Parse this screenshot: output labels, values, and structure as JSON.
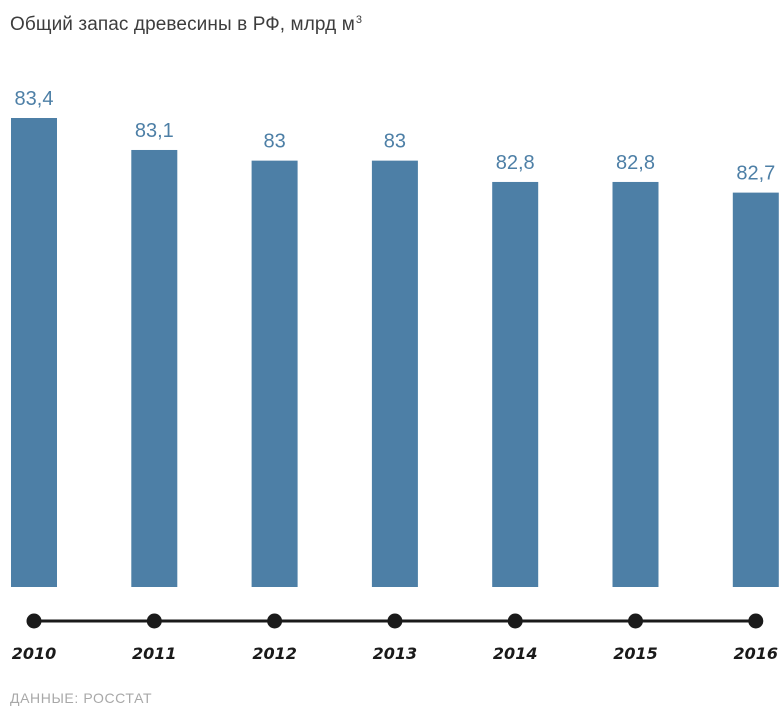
{
  "title": "Общий запас древесины в РФ, млрд м",
  "title_superscript": "3",
  "source": "ДАННЫЕ: РОССТАТ",
  "colors": {
    "bar": "#4d7fa6",
    "value_label": "#4d7fa6",
    "axis": "#1a1a1a",
    "title": "#3d3d3d",
    "source": "#a8a8a8"
  },
  "chart_data": {
    "type": "bar",
    "categories": [
      "2010",
      "2011",
      "2012",
      "2013",
      "2014",
      "2015",
      "2016"
    ],
    "values": [
      83.4,
      83.1,
      83,
      83,
      82.8,
      82.8,
      82.7
    ],
    "value_labels": [
      "83,4",
      "83,1",
      "83",
      "83",
      "82,8",
      "82,8",
      "82,7"
    ],
    "title": "Общий запас древесины в РФ, млрд м³",
    "xlabel": "",
    "ylabel": "",
    "ylim": [
      79.0,
      83.4
    ],
    "grid": false,
    "legend": "none"
  }
}
